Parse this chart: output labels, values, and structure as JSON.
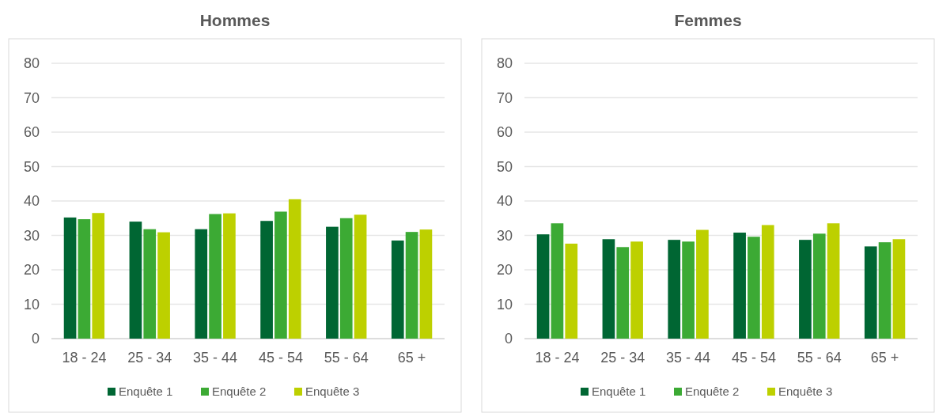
{
  "chart_data": [
    {
      "type": "bar",
      "title": "Hommes",
      "categories": [
        "18 - 24",
        "25 - 34",
        "35 - 44",
        "45 - 54",
        "55 - 64",
        "65 +"
      ],
      "series": [
        {
          "name": "Enquête 1",
          "color": "#006633",
          "values": [
            35.2,
            34.0,
            31.8,
            34.2,
            32.5,
            28.5
          ]
        },
        {
          "name": "Enquête 2",
          "color": "#3caa34",
          "values": [
            34.7,
            31.8,
            36.2,
            36.9,
            35.0,
            31.0
          ]
        },
        {
          "name": "Enquête 3",
          "color": "#bdd000",
          "values": [
            36.5,
            30.9,
            36.4,
            40.5,
            36.0,
            31.7
          ]
        }
      ],
      "ylim": [
        0,
        80
      ],
      "yticks": [
        0,
        10,
        20,
        30,
        40,
        50,
        60,
        70,
        80
      ],
      "grid": "y",
      "legend": "bottom"
    },
    {
      "type": "bar",
      "title": "Femmes",
      "categories": [
        "18 - 24",
        "25 - 34",
        "35 - 44",
        "45 - 54",
        "55 - 64",
        "65 +"
      ],
      "series": [
        {
          "name": "Enquête 1",
          "color": "#006633",
          "values": [
            30.3,
            28.9,
            28.7,
            30.8,
            28.7,
            26.8
          ]
        },
        {
          "name": "Enquête 2",
          "color": "#3caa34",
          "values": [
            33.5,
            26.6,
            28.2,
            29.6,
            30.5,
            28.0
          ]
        },
        {
          "name": "Enquête 3",
          "color": "#bdd000",
          "values": [
            27.6,
            28.2,
            31.6,
            33.0,
            33.5,
            28.9
          ]
        }
      ],
      "ylim": [
        0,
        80
      ],
      "yticks": [
        0,
        10,
        20,
        30,
        40,
        50,
        60,
        70,
        80
      ],
      "grid": "y",
      "legend": "bottom"
    }
  ]
}
